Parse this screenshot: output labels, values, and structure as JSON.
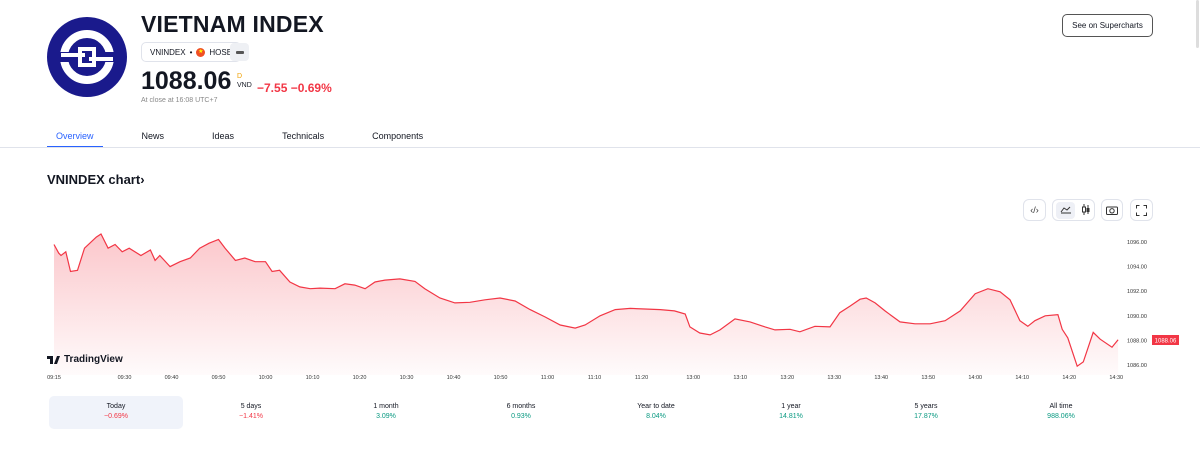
{
  "header": {
    "title": "VIETNAM INDEX",
    "symbol": "VNINDEX",
    "separator": "•",
    "exchange": "HOSE",
    "price": "1088.06",
    "currency_mark": "D",
    "currency": "VND",
    "change": "−7.55",
    "change_pct": "−0.69%",
    "close_note": "At close at 16:08 UTC+7",
    "supercharts_label": "See on Supercharts"
  },
  "tabs": [
    {
      "label": "Overview"
    },
    {
      "label": "News"
    },
    {
      "label": "Ideas"
    },
    {
      "label": "Technicals"
    },
    {
      "label": "Components"
    }
  ],
  "chart_section": {
    "title": "VNINDEX chart",
    "chevron": "›",
    "watermark": "TradingView",
    "tools": [
      "embed-icon",
      "line-chart-icon",
      "candles-icon",
      "camera-icon",
      "fullscreen-icon"
    ]
  },
  "chart_data": {
    "type": "area",
    "title": "VNINDEX chart",
    "xlabel": "",
    "ylabel": "",
    "ylim": [
      1085.5,
      1097
    ],
    "y_ticks": [
      "1096.00",
      "1094.00",
      "1092.00",
      "1090.00",
      "1088.00",
      "1086.00"
    ],
    "y_tick_values": [
      1096,
      1094,
      1092,
      1090,
      1088,
      1086
    ],
    "x_ticks": [
      {
        "label": "09:15",
        "m": 0
      },
      {
        "label": "09:30",
        "m": 15
      },
      {
        "label": "09:40",
        "m": 25
      },
      {
        "label": "09:50",
        "m": 35
      },
      {
        "label": "10:00",
        "m": 45
      },
      {
        "label": "10:10",
        "m": 55
      },
      {
        "label": "10:20",
        "m": 65
      },
      {
        "label": "10:30",
        "m": 75
      },
      {
        "label": "10:40",
        "m": 85
      },
      {
        "label": "10:50",
        "m": 95
      },
      {
        "label": "11:00",
        "m": 105
      },
      {
        "label": "11:10",
        "m": 115
      },
      {
        "label": "11:20",
        "m": 125
      },
      {
        "label": "13:00",
        "m": 136
      },
      {
        "label": "13:10",
        "m": 146
      },
      {
        "label": "13:20",
        "m": 156
      },
      {
        "label": "13:30",
        "m": 166
      },
      {
        "label": "13:40",
        "m": 176
      },
      {
        "label": "13:50",
        "m": 186
      },
      {
        "label": "14:00",
        "m": 196
      },
      {
        "label": "14:10",
        "m": 206
      },
      {
        "label": "14:20",
        "m": 216
      },
      {
        "label": "14:30",
        "m": 226
      }
    ],
    "last_value_label": "1088.06",
    "line_color": "#f23645",
    "points": [
      [
        0,
        1095.8
      ],
      [
        1,
        1095.1
      ],
      [
        1.5,
        1094.9
      ],
      [
        2.5,
        1095.2
      ],
      [
        3.5,
        1093.6
      ],
      [
        5,
        1093.7
      ],
      [
        6.5,
        1095.5
      ],
      [
        9,
        1096.4
      ],
      [
        10,
        1096.65
      ],
      [
        11.5,
        1095.5
      ],
      [
        13,
        1095.8
      ],
      [
        14.5,
        1095.2
      ],
      [
        16,
        1095.5
      ],
      [
        18.5,
        1094.9
      ],
      [
        20.5,
        1095.35
      ],
      [
        21.5,
        1094.5
      ],
      [
        22.5,
        1094.9
      ],
      [
        24.7,
        1094
      ],
      [
        26.8,
        1094.4
      ],
      [
        29,
        1094.7
      ],
      [
        31,
        1095.5
      ],
      [
        33,
        1095.9
      ],
      [
        35,
        1096.2
      ],
      [
        36.4,
        1095.5
      ],
      [
        38.6,
        1094.5
      ],
      [
        40.6,
        1094.7
      ],
      [
        42.8,
        1094.4
      ],
      [
        45,
        1094.4
      ],
      [
        46.4,
        1093.6
      ],
      [
        48,
        1093.7
      ],
      [
        50.2,
        1092.75
      ],
      [
        52.3,
        1092.35
      ],
      [
        54.5,
        1092.2
      ],
      [
        56.6,
        1092.25
      ],
      [
        59.8,
        1092.2
      ],
      [
        61.9,
        1092.6
      ],
      [
        64,
        1092.5
      ],
      [
        66.2,
        1092.2
      ],
      [
        68.3,
        1092.75
      ],
      [
        70.4,
        1092.9
      ],
      [
        73.6,
        1093
      ],
      [
        76.8,
        1092.8
      ],
      [
        78.9,
        1092.2
      ],
      [
        82.1,
        1091.45
      ],
      [
        85.3,
        1091.05
      ],
      [
        88.5,
        1091.1
      ],
      [
        91.7,
        1091.3
      ],
      [
        94.9,
        1091.45
      ],
      [
        98.1,
        1091.2
      ],
      [
        101.3,
        1090.5
      ],
      [
        104.5,
        1089.9
      ],
      [
        107.7,
        1089.25
      ],
      [
        110.9,
        1089
      ],
      [
        113,
        1089.25
      ],
      [
        116.2,
        1090
      ],
      [
        119.4,
        1090.5
      ],
      [
        122.6,
        1090.6
      ],
      [
        125.7,
        1090.55
      ],
      [
        129,
        1090.5
      ],
      [
        132,
        1090.4
      ],
      [
        134.3,
        1090.15
      ],
      [
        135.3,
        1089.1
      ],
      [
        137.4,
        1088.6
      ],
      [
        139.6,
        1088.45
      ],
      [
        141.7,
        1088.85
      ],
      [
        144.9,
        1089.75
      ],
      [
        148.1,
        1089.5
      ],
      [
        151.3,
        1089.1
      ],
      [
        153.4,
        1088.85
      ],
      [
        156.6,
        1088.9
      ],
      [
        158.7,
        1088.7
      ],
      [
        161.9,
        1089.15
      ],
      [
        165.1,
        1089.1
      ],
      [
        167.2,
        1090.25
      ],
      [
        169.4,
        1090.8
      ],
      [
        171.5,
        1091.35
      ],
      [
        172.8,
        1091.45
      ],
      [
        174.7,
        1091.05
      ],
      [
        176.8,
        1090.4
      ],
      [
        180,
        1089.5
      ],
      [
        183.2,
        1089.35
      ],
      [
        186.4,
        1089.35
      ],
      [
        189.6,
        1089.6
      ],
      [
        192.8,
        1090.4
      ],
      [
        196,
        1091.8
      ],
      [
        198.7,
        1092.2
      ],
      [
        201.3,
        1091.95
      ],
      [
        203.4,
        1091.3
      ],
      [
        205.5,
        1089.6
      ],
      [
        207.2,
        1089.15
      ],
      [
        208.7,
        1089.6
      ],
      [
        210.9,
        1090
      ],
      [
        213.6,
        1090.1
      ],
      [
        214.5,
        1088.9
      ],
      [
        215.7,
        1088.2
      ],
      [
        217.7,
        1085.9
      ],
      [
        219,
        1086.25
      ],
      [
        221.1,
        1088.65
      ],
      [
        222.6,
        1088.1
      ],
      [
        225.1,
        1087.45
      ],
      [
        226.4,
        1088.06
      ]
    ]
  },
  "periods": [
    {
      "label": "Today",
      "value": "−0.69%",
      "dir": "down"
    },
    {
      "label": "5 days",
      "value": "−1.41%",
      "dir": "down"
    },
    {
      "label": "1 month",
      "value": "3.09%",
      "dir": "up"
    },
    {
      "label": "6 months",
      "value": "0.93%",
      "dir": "up"
    },
    {
      "label": "Year to date",
      "value": "8.04%",
      "dir": "up"
    },
    {
      "label": "1 year",
      "value": "14.81%",
      "dir": "up"
    },
    {
      "label": "5 years",
      "value": "17.87%",
      "dir": "up"
    },
    {
      "label": "All time",
      "value": "988.06%",
      "dir": "up"
    }
  ]
}
